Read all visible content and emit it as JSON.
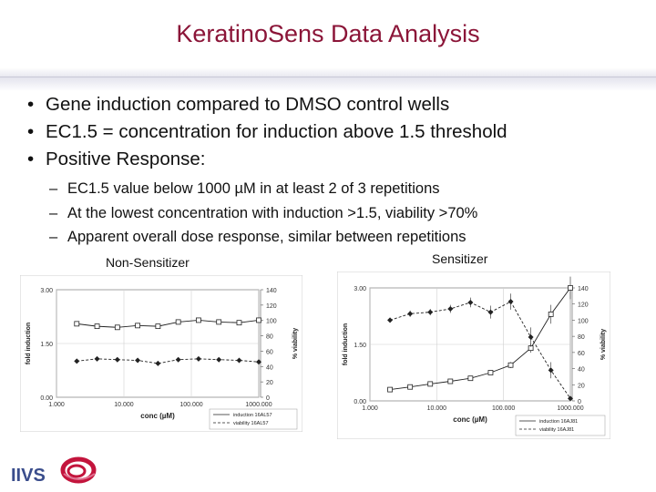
{
  "slide": {
    "title": "KeratinoSens Data Analysis",
    "bullets": [
      "Gene induction compared to DMSO control wells",
      "EC1.5 = concentration for induction above 1.5 threshold",
      "Positive Response:"
    ],
    "sub_bullets": [
      "EC1.5 value below 1000 µM in at least 2 of 3 repetitions",
      "At the lowest concentration with induction >1.5, viability >70%",
      "Apparent overall dose response, similar between repetitions"
    ],
    "left_caption": "Non-Sensitizer",
    "right_caption": "Sensitizer",
    "logo_text": "IIVS",
    "colors": {
      "title": "#8b1538",
      "logo": "#c3143c",
      "logo_text": "#3a4d8c"
    }
  },
  "chart_data": [
    {
      "type": "line",
      "xlabel": "conc (µM)",
      "ylabel": "fold induction",
      "y2label": "% viability",
      "x_scale": "log",
      "x_ticks": [
        "1.000",
        "10.000",
        "100.000",
        "1000.000"
      ],
      "x_tick_values": [
        1,
        10,
        100,
        1000
      ],
      "xlim": [
        1,
        1000
      ],
      "y_ticks": [
        "0.00",
        "1.50",
        "3.00"
      ],
      "y_tick_values": [
        0,
        1.5,
        3
      ],
      "ylim": [
        0,
        3
      ],
      "y2_ticks": [
        "0",
        "20",
        "40",
        "60",
        "80",
        "100",
        "120",
        "140"
      ],
      "y2_tick_values": [
        0,
        20,
        40,
        60,
        80,
        100,
        120,
        140
      ],
      "y2lim": [
        0,
        140
      ],
      "grid": true,
      "legend_position": "bottom-right",
      "series": [
        {
          "name": "induction 16AL57",
          "axis": "left",
          "marker": "square",
          "x": [
            2,
            4,
            8,
            16,
            32,
            64,
            128,
            256,
            512,
            1000
          ],
          "y": [
            2.05,
            1.98,
            1.95,
            2.0,
            1.98,
            2.1,
            2.15,
            2.1,
            2.08,
            2.15
          ]
        },
        {
          "name": "viability 16AL57",
          "axis": "right",
          "marker": "diamond",
          "x": [
            2,
            4,
            8,
            16,
            32,
            64,
            128,
            256,
            512,
            1000
          ],
          "y": [
            47,
            50,
            49,
            48,
            44,
            49,
            50,
            49,
            48,
            46
          ]
        }
      ]
    },
    {
      "type": "line",
      "xlabel": "conc (µM)",
      "ylabel": "fold induction",
      "y2label": "% viability",
      "x_scale": "log",
      "x_ticks": [
        "1.000",
        "10.000",
        "100.000",
        "1000.000"
      ],
      "x_tick_values": [
        1,
        10,
        100,
        1000
      ],
      "xlim": [
        1,
        1000
      ],
      "y_ticks": [
        "0.00",
        "1.50",
        "3.00"
      ],
      "y_tick_values": [
        0,
        1.5,
        3
      ],
      "ylim": [
        0,
        3
      ],
      "y2_ticks": [
        "0",
        "20",
        "40",
        "60",
        "80",
        "100",
        "120",
        "140"
      ],
      "y2_tick_values": [
        0,
        20,
        40,
        60,
        80,
        100,
        120,
        140
      ],
      "y2lim": [
        0,
        140
      ],
      "grid": true,
      "legend_position": "bottom-right",
      "series": [
        {
          "name": "induction 16AJ81",
          "axis": "left",
          "marker": "square",
          "x": [
            2,
            4,
            8,
            16,
            32,
            64,
            128,
            256,
            512,
            1000
          ],
          "y": [
            0.3,
            0.37,
            0.45,
            0.52,
            0.6,
            0.75,
            0.95,
            1.4,
            2.3,
            3.0
          ],
          "err": [
            0.02,
            0.02,
            0.03,
            0.03,
            0.04,
            0.05,
            0.08,
            0.12,
            0.25,
            0.3
          ]
        },
        {
          "name": "viability 16AJ81",
          "axis": "right",
          "marker": "diamond",
          "x": [
            2,
            4,
            8,
            16,
            32,
            64,
            128,
            256,
            512,
            1000
          ],
          "y": [
            100,
            108,
            110,
            114,
            122,
            110,
            123,
            79,
            38,
            3
          ],
          "err": [
            3,
            4,
            4,
            5,
            6,
            8,
            10,
            12,
            10,
            3
          ]
        }
      ]
    }
  ]
}
